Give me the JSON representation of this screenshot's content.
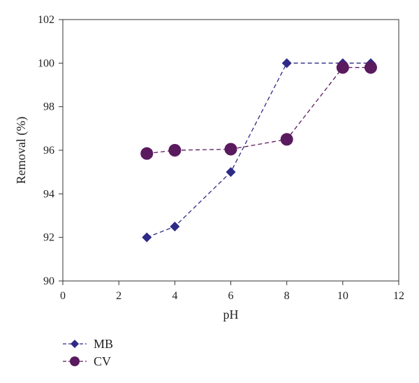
{
  "chart_data": {
    "type": "line",
    "xlabel": "pH",
    "ylabel": "Removal (%)",
    "xlim": [
      0,
      12
    ],
    "ylim": [
      90,
      102
    ],
    "x_ticks": [
      0,
      2,
      4,
      6,
      8,
      10,
      12
    ],
    "y_ticks": [
      90,
      92,
      94,
      96,
      98,
      100,
      102
    ],
    "grid": false,
    "legend_position": "bottom-left, below plot",
    "series": [
      {
        "name": "MB",
        "marker": "diamond",
        "line_style": "dashed",
        "color": "#2e2a85",
        "x": [
          3,
          4,
          6,
          8,
          10,
          11
        ],
        "y": [
          92.0,
          92.5,
          95.0,
          100.0,
          100.0,
          100.0
        ]
      },
      {
        "name": "CV",
        "marker": "circle",
        "line_style": "dashed",
        "color": "#5a1a5e",
        "x": [
          3,
          4,
          6,
          8,
          10,
          11
        ],
        "y": [
          95.85,
          96.0,
          96.05,
          96.5,
          99.8,
          99.8
        ]
      }
    ]
  }
}
